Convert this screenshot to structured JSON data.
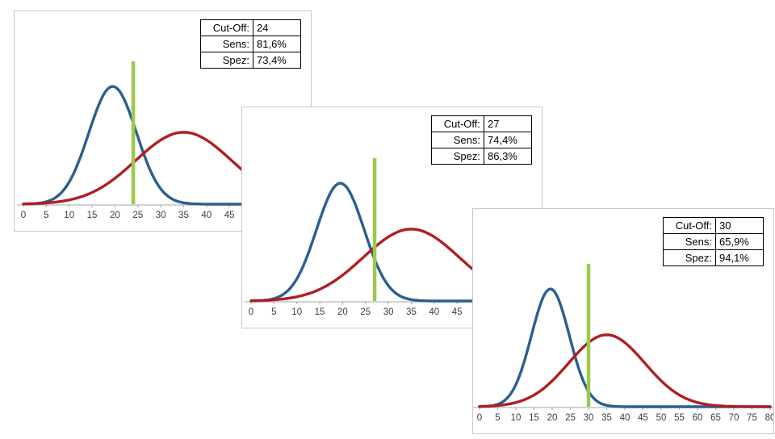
{
  "page": {
    "background": "#ffffff"
  },
  "panels": [
    {
      "table": {
        "rows": [
          {
            "label": "Cut-Off:",
            "value": "24"
          },
          {
            "label": "Sens:",
            "value": "81,6%"
          },
          {
            "label": "Spez:",
            "value": "73,4%"
          }
        ]
      }
    },
    {
      "table": {
        "rows": [
          {
            "label": "Cut-Off:",
            "value": "27"
          },
          {
            "label": "Sens:",
            "value": "74,4%"
          },
          {
            "label": "Spez:",
            "value": "86,3%"
          }
        ]
      }
    },
    {
      "table": {
        "rows": [
          {
            "label": "Cut-Off:",
            "value": "30"
          },
          {
            "label": "Sens:",
            "value": "65,9%"
          },
          {
            "label": "Spez:",
            "value": "94,1%"
          }
        ]
      }
    }
  ],
  "chart_data": [
    {
      "type": "line",
      "title": "",
      "xlabel": "",
      "ylabel": "",
      "x_axis": {
        "min": 0,
        "max": 80,
        "tick_step": 5,
        "visible_max_approx": 62
      },
      "y_axis": {
        "shown": false
      },
      "legend": "none",
      "grid": false,
      "cutoff_line": {
        "x": 24,
        "color": "#9cc94b"
      },
      "stats": {
        "cutoff": 24,
        "sensitivity_pct": 81.6,
        "specificity_pct": 73.4
      },
      "series": [
        {
          "name": "negative-group-distribution",
          "shape": "gaussian",
          "mean": 19.5,
          "sd": 5.2,
          "peak": 1.0,
          "color": "#2a5f8f"
        },
        {
          "name": "positive-group-distribution",
          "shape": "gaussian",
          "mean": 35,
          "sd": 10.5,
          "peak": 0.61,
          "color": "#b01e23"
        }
      ]
    },
    {
      "type": "line",
      "title": "",
      "xlabel": "",
      "ylabel": "",
      "x_axis": {
        "min": 0,
        "max": 80,
        "tick_step": 5,
        "visible_max_approx": 62
      },
      "y_axis": {
        "shown": false
      },
      "legend": "none",
      "grid": false,
      "cutoff_line": {
        "x": 27,
        "color": "#9cc94b"
      },
      "stats": {
        "cutoff": 27,
        "sensitivity_pct": 74.4,
        "specificity_pct": 86.3
      },
      "series": [
        {
          "name": "negative-group-distribution",
          "shape": "gaussian",
          "mean": 19.5,
          "sd": 5.2,
          "peak": 1.0,
          "color": "#2a5f8f"
        },
        {
          "name": "positive-group-distribution",
          "shape": "gaussian",
          "mean": 35,
          "sd": 10.5,
          "peak": 0.61,
          "color": "#b01e23"
        }
      ]
    },
    {
      "type": "line",
      "title": "",
      "xlabel": "",
      "ylabel": "",
      "x_axis": {
        "min": 0,
        "max": 80,
        "tick_step": 5,
        "visible_max_approx": 80
      },
      "y_axis": {
        "shown": false
      },
      "legend": "none",
      "grid": false,
      "cutoff_line": {
        "x": 30,
        "color": "#9cc94b"
      },
      "stats": {
        "cutoff": 30,
        "sensitivity_pct": 65.9,
        "specificity_pct": 94.1
      },
      "series": [
        {
          "name": "negative-group-distribution",
          "shape": "gaussian",
          "mean": 19.5,
          "sd": 5.2,
          "peak": 1.0,
          "color": "#2a5f8f"
        },
        {
          "name": "positive-group-distribution",
          "shape": "gaussian",
          "mean": 35,
          "sd": 10.5,
          "peak": 0.61,
          "color": "#b01e23"
        }
      ]
    }
  ]
}
